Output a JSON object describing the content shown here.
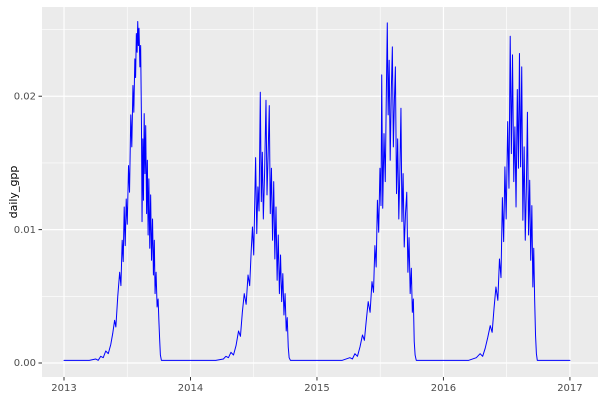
{
  "chart_data": {
    "type": "line",
    "title": "",
    "xlabel": "",
    "ylabel": "daily_gpp",
    "legend": "none",
    "grid": "on",
    "panel_background": "#EBEBEB",
    "grid_major_color": "#FFFFFF",
    "grid_minor_color": "#FFFFFF",
    "tick_mark_color": "#333333",
    "tick_label_color": "#4D4D4D",
    "xlim": [
      2012.826,
      2017.222
    ],
    "ylim": [
      -0.00105,
      0.02669
    ],
    "x_ticks": {
      "major": [
        2013,
        2014,
        2015,
        2016,
        2017
      ],
      "labels": [
        "2013",
        "2014",
        "2015",
        "2016",
        "2017"
      ],
      "minor": [
        2013.5,
        2014.5,
        2015.5,
        2016.5
      ]
    },
    "y_ticks": {
      "major": [
        0.0,
        0.01,
        0.02
      ],
      "labels": [
        "0.00",
        "0.01",
        "0.02"
      ],
      "minor": [
        0.005,
        0.015,
        0.025
      ]
    },
    "series": [
      {
        "name": "daily_gpp",
        "color": "#0000FF",
        "points": [
          [
            2013.0,
            0.0002
          ],
          [
            2013.1,
            0.0002
          ],
          [
            2013.2,
            0.0002
          ],
          [
            2013.25,
            0.0003
          ],
          [
            2013.27,
            0.0002
          ],
          [
            2013.29,
            0.0005
          ],
          [
            2013.31,
            0.0004
          ],
          [
            2013.33,
            0.0009
          ],
          [
            2013.35,
            0.0007
          ],
          [
            2013.37,
            0.0014
          ],
          [
            2013.385,
            0.0022
          ],
          [
            2013.4,
            0.0032
          ],
          [
            2013.41,
            0.0027
          ],
          [
            2013.425,
            0.005
          ],
          [
            2013.44,
            0.0068
          ],
          [
            2013.45,
            0.0058
          ],
          [
            2013.46,
            0.0092
          ],
          [
            2013.468,
            0.0076
          ],
          [
            2013.476,
            0.0117
          ],
          [
            2013.484,
            0.0088
          ],
          [
            2013.492,
            0.0123
          ],
          [
            2013.5,
            0.0104
          ],
          [
            2013.51,
            0.0148
          ],
          [
            2013.518,
            0.0128
          ],
          [
            2013.528,
            0.0186
          ],
          [
            2013.536,
            0.0162
          ],
          [
            2013.545,
            0.0208
          ],
          [
            2013.552,
            0.0188
          ],
          [
            2013.56,
            0.0228
          ],
          [
            2013.566,
            0.0214
          ],
          [
            2013.572,
            0.0247
          ],
          [
            2013.578,
            0.0233
          ],
          [
            2013.583,
            0.0256
          ],
          [
            2013.588,
            0.0238
          ],
          [
            2013.593,
            0.0251
          ],
          [
            2013.6,
            0.0222
          ],
          [
            2013.606,
            0.0238
          ],
          [
            2013.612,
            0.0185
          ],
          [
            2013.617,
            0.0106
          ],
          [
            2013.623,
            0.0168
          ],
          [
            2013.628,
            0.0122
          ],
          [
            2013.634,
            0.0187
          ],
          [
            2013.64,
            0.0142
          ],
          [
            2013.646,
            0.0178
          ],
          [
            2013.653,
            0.0112
          ],
          [
            2013.659,
            0.0152
          ],
          [
            2013.665,
            0.0096
          ],
          [
            2013.671,
            0.0138
          ],
          [
            2013.678,
            0.0086
          ],
          [
            2013.685,
            0.0126
          ],
          [
            2013.692,
            0.0077
          ],
          [
            2013.7,
            0.0108
          ],
          [
            2013.707,
            0.0066
          ],
          [
            2013.714,
            0.0092
          ],
          [
            2013.72,
            0.0052
          ],
          [
            2013.728,
            0.0068
          ],
          [
            2013.736,
            0.0042
          ],
          [
            2013.744,
            0.0048
          ],
          [
            2013.75,
            0.0032
          ],
          [
            2013.756,
            0.0018
          ],
          [
            2013.762,
            0.0006
          ],
          [
            2013.77,
            0.0002
          ],
          [
            2013.85,
            0.0002
          ],
          [
            2014.0,
            0.0002
          ],
          [
            2014.1,
            0.0002
          ],
          [
            2014.2,
            0.0002
          ],
          [
            2014.26,
            0.0003
          ],
          [
            2014.28,
            0.0005
          ],
          [
            2014.3,
            0.0004
          ],
          [
            2014.32,
            0.0008
          ],
          [
            2014.34,
            0.0006
          ],
          [
            2014.36,
            0.0013
          ],
          [
            2014.38,
            0.0024
          ],
          [
            2014.395,
            0.002
          ],
          [
            2014.41,
            0.0038
          ],
          [
            2014.425,
            0.0052
          ],
          [
            2014.44,
            0.0044
          ],
          [
            2014.455,
            0.0066
          ],
          [
            2014.468,
            0.0058
          ],
          [
            2014.48,
            0.0084
          ],
          [
            2014.49,
            0.0102
          ],
          [
            2014.5,
            0.0081
          ],
          [
            2014.515,
            0.0154
          ],
          [
            2014.524,
            0.0097
          ],
          [
            2014.533,
            0.0132
          ],
          [
            2014.542,
            0.0114
          ],
          [
            2014.552,
            0.0203
          ],
          [
            2014.56,
            0.0121
          ],
          [
            2014.568,
            0.0158
          ],
          [
            2014.576,
            0.0108
          ],
          [
            2014.586,
            0.0143
          ],
          [
            2014.597,
            0.0197
          ],
          [
            2014.605,
            0.0126
          ],
          [
            2014.614,
            0.0157
          ],
          [
            2014.623,
            0.0193
          ],
          [
            2014.631,
            0.0112
          ],
          [
            2014.64,
            0.0146
          ],
          [
            2014.649,
            0.0092
          ],
          [
            2014.658,
            0.0136
          ],
          [
            2014.667,
            0.0078
          ],
          [
            2014.676,
            0.0117
          ],
          [
            2014.685,
            0.0062
          ],
          [
            2014.694,
            0.0096
          ],
          [
            2014.703,
            0.0052
          ],
          [
            2014.712,
            0.0081
          ],
          [
            2014.721,
            0.0046
          ],
          [
            2014.73,
            0.0067
          ],
          [
            2014.739,
            0.0036
          ],
          [
            2014.748,
            0.0052
          ],
          [
            2014.757,
            0.0024
          ],
          [
            2014.765,
            0.0034
          ],
          [
            2014.773,
            0.0012
          ],
          [
            2014.78,
            0.0004
          ],
          [
            2014.79,
            0.0002
          ],
          [
            2014.9,
            0.0002
          ],
          [
            2015.0,
            0.0002
          ],
          [
            2015.1,
            0.0002
          ],
          [
            2015.2,
            0.0002
          ],
          [
            2015.26,
            0.0004
          ],
          [
            2015.28,
            0.0003
          ],
          [
            2015.3,
            0.0007
          ],
          [
            2015.32,
            0.0005
          ],
          [
            2015.34,
            0.0012
          ],
          [
            2015.36,
            0.0021
          ],
          [
            2015.375,
            0.0017
          ],
          [
            2015.39,
            0.0032
          ],
          [
            2015.405,
            0.0046
          ],
          [
            2015.42,
            0.0038
          ],
          [
            2015.435,
            0.0061
          ],
          [
            2015.447,
            0.0053
          ],
          [
            2015.458,
            0.0088
          ],
          [
            2015.468,
            0.0072
          ],
          [
            2015.478,
            0.0122
          ],
          [
            2015.488,
            0.0098
          ],
          [
            2015.498,
            0.0146
          ],
          [
            2015.506,
            0.0118
          ],
          [
            2015.512,
            0.0216
          ],
          [
            2015.52,
            0.0116
          ],
          [
            2015.53,
            0.0172
          ],
          [
            2015.54,
            0.0136
          ],
          [
            2015.548,
            0.0198
          ],
          [
            2015.556,
            0.0255
          ],
          [
            2015.563,
            0.0186
          ],
          [
            2015.571,
            0.0227
          ],
          [
            2015.579,
            0.0152
          ],
          [
            2015.588,
            0.0205
          ],
          [
            2015.596,
            0.0237
          ],
          [
            2015.604,
            0.0162
          ],
          [
            2015.612,
            0.0196
          ],
          [
            2015.62,
            0.0222
          ],
          [
            2015.629,
            0.0127
          ],
          [
            2015.638,
            0.0168
          ],
          [
            2015.647,
            0.0108
          ],
          [
            2015.656,
            0.0146
          ],
          [
            2015.664,
            0.0191
          ],
          [
            2015.672,
            0.0106
          ],
          [
            2015.681,
            0.0142
          ],
          [
            2015.69,
            0.0087
          ],
          [
            2015.7,
            0.0112
          ],
          [
            2015.71,
            0.0128
          ],
          [
            2015.719,
            0.0068
          ],
          [
            2015.728,
            0.0094
          ],
          [
            2015.737,
            0.0052
          ],
          [
            2015.746,
            0.0071
          ],
          [
            2015.754,
            0.0038
          ],
          [
            2015.762,
            0.0048
          ],
          [
            2015.769,
            0.0016
          ],
          [
            2015.776,
            0.0006
          ],
          [
            2015.785,
            0.0002
          ],
          [
            2015.9,
            0.0002
          ],
          [
            2016.0,
            0.0002
          ],
          [
            2016.1,
            0.0002
          ],
          [
            2016.2,
            0.0002
          ],
          [
            2016.26,
            0.0004
          ],
          [
            2016.29,
            0.0007
          ],
          [
            2016.31,
            0.0005
          ],
          [
            2016.33,
            0.0011
          ],
          [
            2016.35,
            0.0019
          ],
          [
            2016.37,
            0.0028
          ],
          [
            2016.385,
            0.0023
          ],
          [
            2016.4,
            0.0041
          ],
          [
            2016.415,
            0.0057
          ],
          [
            2016.43,
            0.0047
          ],
          [
            2016.443,
            0.0078
          ],
          [
            2016.455,
            0.0064
          ],
          [
            2016.466,
            0.0124
          ],
          [
            2016.476,
            0.0091
          ],
          [
            2016.486,
            0.0147
          ],
          [
            2016.496,
            0.0108
          ],
          [
            2016.508,
            0.0181
          ],
          [
            2016.518,
            0.0131
          ],
          [
            2016.528,
            0.0245
          ],
          [
            2016.537,
            0.0157
          ],
          [
            2016.546,
            0.0231
          ],
          [
            2016.556,
            0.0136
          ],
          [
            2016.565,
            0.0177
          ],
          [
            2016.574,
            0.0117
          ],
          [
            2016.584,
            0.0205
          ],
          [
            2016.593,
            0.0146
          ],
          [
            2016.601,
            0.0232
          ],
          [
            2016.61,
            0.0147
          ],
          [
            2016.619,
            0.0222
          ],
          [
            2016.628,
            0.0107
          ],
          [
            2016.638,
            0.0162
          ],
          [
            2016.647,
            0.0092
          ],
          [
            2016.656,
            0.0133
          ],
          [
            2016.664,
            0.0188
          ],
          [
            2016.673,
            0.0096
          ],
          [
            2016.682,
            0.0137
          ],
          [
            2016.69,
            0.0077
          ],
          [
            2016.699,
            0.0118
          ],
          [
            2016.707,
            0.0057
          ],
          [
            2016.714,
            0.0086
          ],
          [
            2016.721,
            0.0048
          ],
          [
            2016.728,
            0.0021
          ],
          [
            2016.735,
            0.0007
          ],
          [
            2016.742,
            0.0002
          ],
          [
            2016.85,
            0.0002
          ],
          [
            2016.95,
            0.0002
          ],
          [
            2017.0,
            0.0002
          ]
        ]
      }
    ]
  }
}
